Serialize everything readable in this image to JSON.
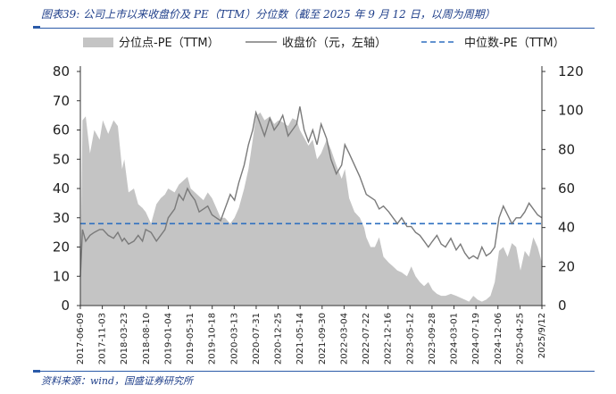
{
  "figure_title": "图表39: 公司上市以来收盘价及 PE（TTM）分位数（截至 2025 年 9 月 12 日，以周为周期）",
  "source_note": "资料来源：wind，国盛证券研究所",
  "chart_data": {
    "type": "area",
    "legend": {
      "placement": "top",
      "items": [
        "分位点-PE（TTM）",
        "收盘价（元，左轴）",
        "中位数-PE（TTM）"
      ]
    },
    "x_tick_labels": [
      "2017-06-09",
      "2017-11-03",
      "2018-03-23",
      "2018-08-10",
      "2019-01-04",
      "2019-05-31",
      "2019-10-18",
      "2020-03-13",
      "2020-07-31",
      "2020-12-25",
      "2021-05-14",
      "2021-09-30",
      "2022-03-04",
      "2022-07-22",
      "2022-12-16",
      "2023-05-12",
      "2023-09-28",
      "2024-03-01",
      "2024-07-19",
      "2024-12-06",
      "2025-04-25",
      "2025/9/12"
    ],
    "x_range": [
      "2017-06-09",
      "2025-09-12"
    ],
    "y_left": {
      "ticks": [
        0,
        10,
        20,
        30,
        40,
        50,
        60,
        70,
        80
      ],
      "range": [
        0,
        80
      ]
    },
    "y_right": {
      "ticks": [
        0,
        20,
        40,
        60,
        80,
        100,
        120
      ],
      "range": [
        0,
        120
      ]
    },
    "series": [
      {
        "name": "分位点-PE（TTM）",
        "kind": "area",
        "axis": "right",
        "color": "#c4c4c4",
        "x": [
          "2017-06-09",
          "2017-06-23",
          "2017-07-14",
          "2017-08-11",
          "2017-09-08",
          "2017-10-13",
          "2017-11-03",
          "2017-12-08",
          "2018-01-12",
          "2018-02-09",
          "2018-03-09",
          "2018-03-23",
          "2018-04-20",
          "2018-05-25",
          "2018-06-22",
          "2018-07-20",
          "2018-08-10",
          "2018-09-14",
          "2018-10-19",
          "2018-11-16",
          "2018-12-14",
          "2019-01-04",
          "2019-02-15",
          "2019-03-15",
          "2019-04-12",
          "2019-05-10",
          "2019-05-31",
          "2019-06-28",
          "2019-07-26",
          "2019-08-23",
          "2019-09-20",
          "2019-10-18",
          "2019-11-15",
          "2019-12-13",
          "2020-01-10",
          "2020-02-14",
          "2020-03-13",
          "2020-04-10",
          "2020-05-15",
          "2020-06-12",
          "2020-07-10",
          "2020-07-31",
          "2020-08-28",
          "2020-09-25",
          "2020-10-30",
          "2020-11-27",
          "2020-12-25",
          "2021-01-22",
          "2021-02-26",
          "2021-03-26",
          "2021-04-23",
          "2021-05-14",
          "2021-06-11",
          "2021-07-09",
          "2021-08-06",
          "2021-09-03",
          "2021-09-30",
          "2021-11-05",
          "2021-12-03",
          "2022-01-07",
          "2022-02-11",
          "2022-03-04",
          "2022-04-01",
          "2022-05-06",
          "2022-06-10",
          "2022-07-08",
          "2022-07-22",
          "2022-08-19",
          "2022-09-16",
          "2022-10-14",
          "2022-11-11",
          "2022-12-16",
          "2023-01-13",
          "2023-02-10",
          "2023-03-10",
          "2023-04-14",
          "2023-05-12",
          "2023-06-09",
          "2023-07-07",
          "2023-08-04",
          "2023-09-01",
          "2023-09-28",
          "2023-10-27",
          "2023-11-24",
          "2023-12-22",
          "2024-01-26",
          "2024-03-01",
          "2024-03-29",
          "2024-04-26",
          "2024-05-24",
          "2024-06-21",
          "2024-07-19",
          "2024-08-16",
          "2024-09-13",
          "2024-10-11",
          "2024-11-08",
          "2024-12-06",
          "2025-01-03",
          "2025-01-31",
          "2025-02-28",
          "2025-03-28",
          "2025-04-25",
          "2025-05-23",
          "2025-06-20",
          "2025-07-18",
          "2025-08-15",
          "2025-09-12"
        ],
        "values": [
          10,
          95,
          97,
          78,
          90,
          85,
          95,
          88,
          95,
          92,
          70,
          75,
          58,
          60,
          52,
          50,
          48,
          42,
          52,
          55,
          57,
          60,
          58,
          62,
          64,
          66,
          60,
          58,
          56,
          54,
          58,
          55,
          50,
          45,
          45,
          42,
          45,
          50,
          60,
          70,
          85,
          97,
          99,
          95,
          97,
          93,
          95,
          94,
          92,
          96,
          95,
          90,
          86,
          82,
          85,
          75,
          78,
          85,
          80,
          72,
          65,
          70,
          55,
          48,
          45,
          40,
          35,
          30,
          30,
          35,
          25,
          22,
          20,
          18,
          17,
          15,
          20,
          15,
          12,
          10,
          12,
          8,
          6,
          5,
          5,
          6,
          5,
          4,
          3,
          2,
          5,
          3,
          2,
          3,
          5,
          12,
          28,
          30,
          25,
          32,
          30,
          18,
          28,
          25,
          35,
          30,
          22
        ]
      },
      {
        "name": "收盘价（元，左轴）",
        "kind": "line",
        "axis": "left",
        "color": "#7a7a7a",
        "x": [
          "2017-06-09",
          "2017-06-23",
          "2017-07-14",
          "2017-08-11",
          "2017-09-08",
          "2017-10-13",
          "2017-11-03",
          "2017-12-08",
          "2018-01-12",
          "2018-02-09",
          "2018-03-09",
          "2018-03-23",
          "2018-04-20",
          "2018-05-25",
          "2018-06-22",
          "2018-07-20",
          "2018-08-10",
          "2018-09-14",
          "2018-10-19",
          "2018-11-16",
          "2018-12-14",
          "2019-01-04",
          "2019-02-15",
          "2019-03-15",
          "2019-04-12",
          "2019-05-10",
          "2019-05-31",
          "2019-06-28",
          "2019-07-26",
          "2019-08-23",
          "2019-09-20",
          "2019-10-18",
          "2019-11-15",
          "2019-12-13",
          "2020-01-10",
          "2020-02-14",
          "2020-03-13",
          "2020-04-10",
          "2020-05-15",
          "2020-06-12",
          "2020-07-10",
          "2020-07-31",
          "2020-08-28",
          "2020-09-25",
          "2020-10-30",
          "2020-11-27",
          "2020-12-25",
          "2021-01-22",
          "2021-02-26",
          "2021-03-26",
          "2021-04-23",
          "2021-05-14",
          "2021-06-11",
          "2021-07-09",
          "2021-08-06",
          "2021-09-03",
          "2021-09-30",
          "2021-11-05",
          "2021-12-03",
          "2022-01-07",
          "2022-02-11",
          "2022-03-04",
          "2022-04-01",
          "2022-05-06",
          "2022-06-10",
          "2022-07-08",
          "2022-07-22",
          "2022-08-19",
          "2022-09-16",
          "2022-10-14",
          "2022-11-11",
          "2022-12-16",
          "2023-01-13",
          "2023-02-10",
          "2023-03-10",
          "2023-04-14",
          "2023-05-12",
          "2023-06-09",
          "2023-07-07",
          "2023-08-04",
          "2023-09-01",
          "2023-09-28",
          "2023-10-27",
          "2023-11-24",
          "2023-12-22",
          "2024-01-26",
          "2024-03-01",
          "2024-03-29",
          "2024-04-26",
          "2024-05-24",
          "2024-06-21",
          "2024-07-19",
          "2024-08-16",
          "2024-09-13",
          "2024-10-11",
          "2024-11-08",
          "2024-12-06",
          "2025-01-03",
          "2025-01-31",
          "2025-02-28",
          "2025-03-28",
          "2025-04-25",
          "2025-05-23",
          "2025-06-20",
          "2025-07-18",
          "2025-08-15",
          "2025-09-12"
        ],
        "values": [
          10,
          26,
          22,
          24,
          25,
          26,
          26,
          24,
          23,
          25,
          22,
          23,
          21,
          22,
          24,
          22,
          26,
          25,
          22,
          24,
          26,
          30,
          33,
          38,
          36,
          40,
          38,
          36,
          32,
          33,
          34,
          31,
          30,
          29,
          33,
          38,
          36,
          42,
          48,
          55,
          60,
          66,
          62,
          58,
          64,
          60,
          62,
          65,
          58,
          60,
          62,
          68,
          60,
          56,
          60,
          55,
          62,
          57,
          50,
          45,
          48,
          55,
          52,
          48,
          44,
          40,
          38,
          37,
          36,
          33,
          34,
          32,
          30,
          28,
          30,
          27,
          27,
          25,
          24,
          22,
          20,
          22,
          24,
          21,
          20,
          23,
          19,
          21,
          18,
          16,
          17,
          16,
          20,
          17,
          18,
          20,
          30,
          34,
          31,
          28,
          30,
          30,
          32,
          35,
          33,
          31,
          30
        ]
      },
      {
        "name": "中位数-PE（TTM）",
        "kind": "dashed-line",
        "axis": "right",
        "color": "#2e6fc0",
        "constant": 42
      }
    ]
  }
}
